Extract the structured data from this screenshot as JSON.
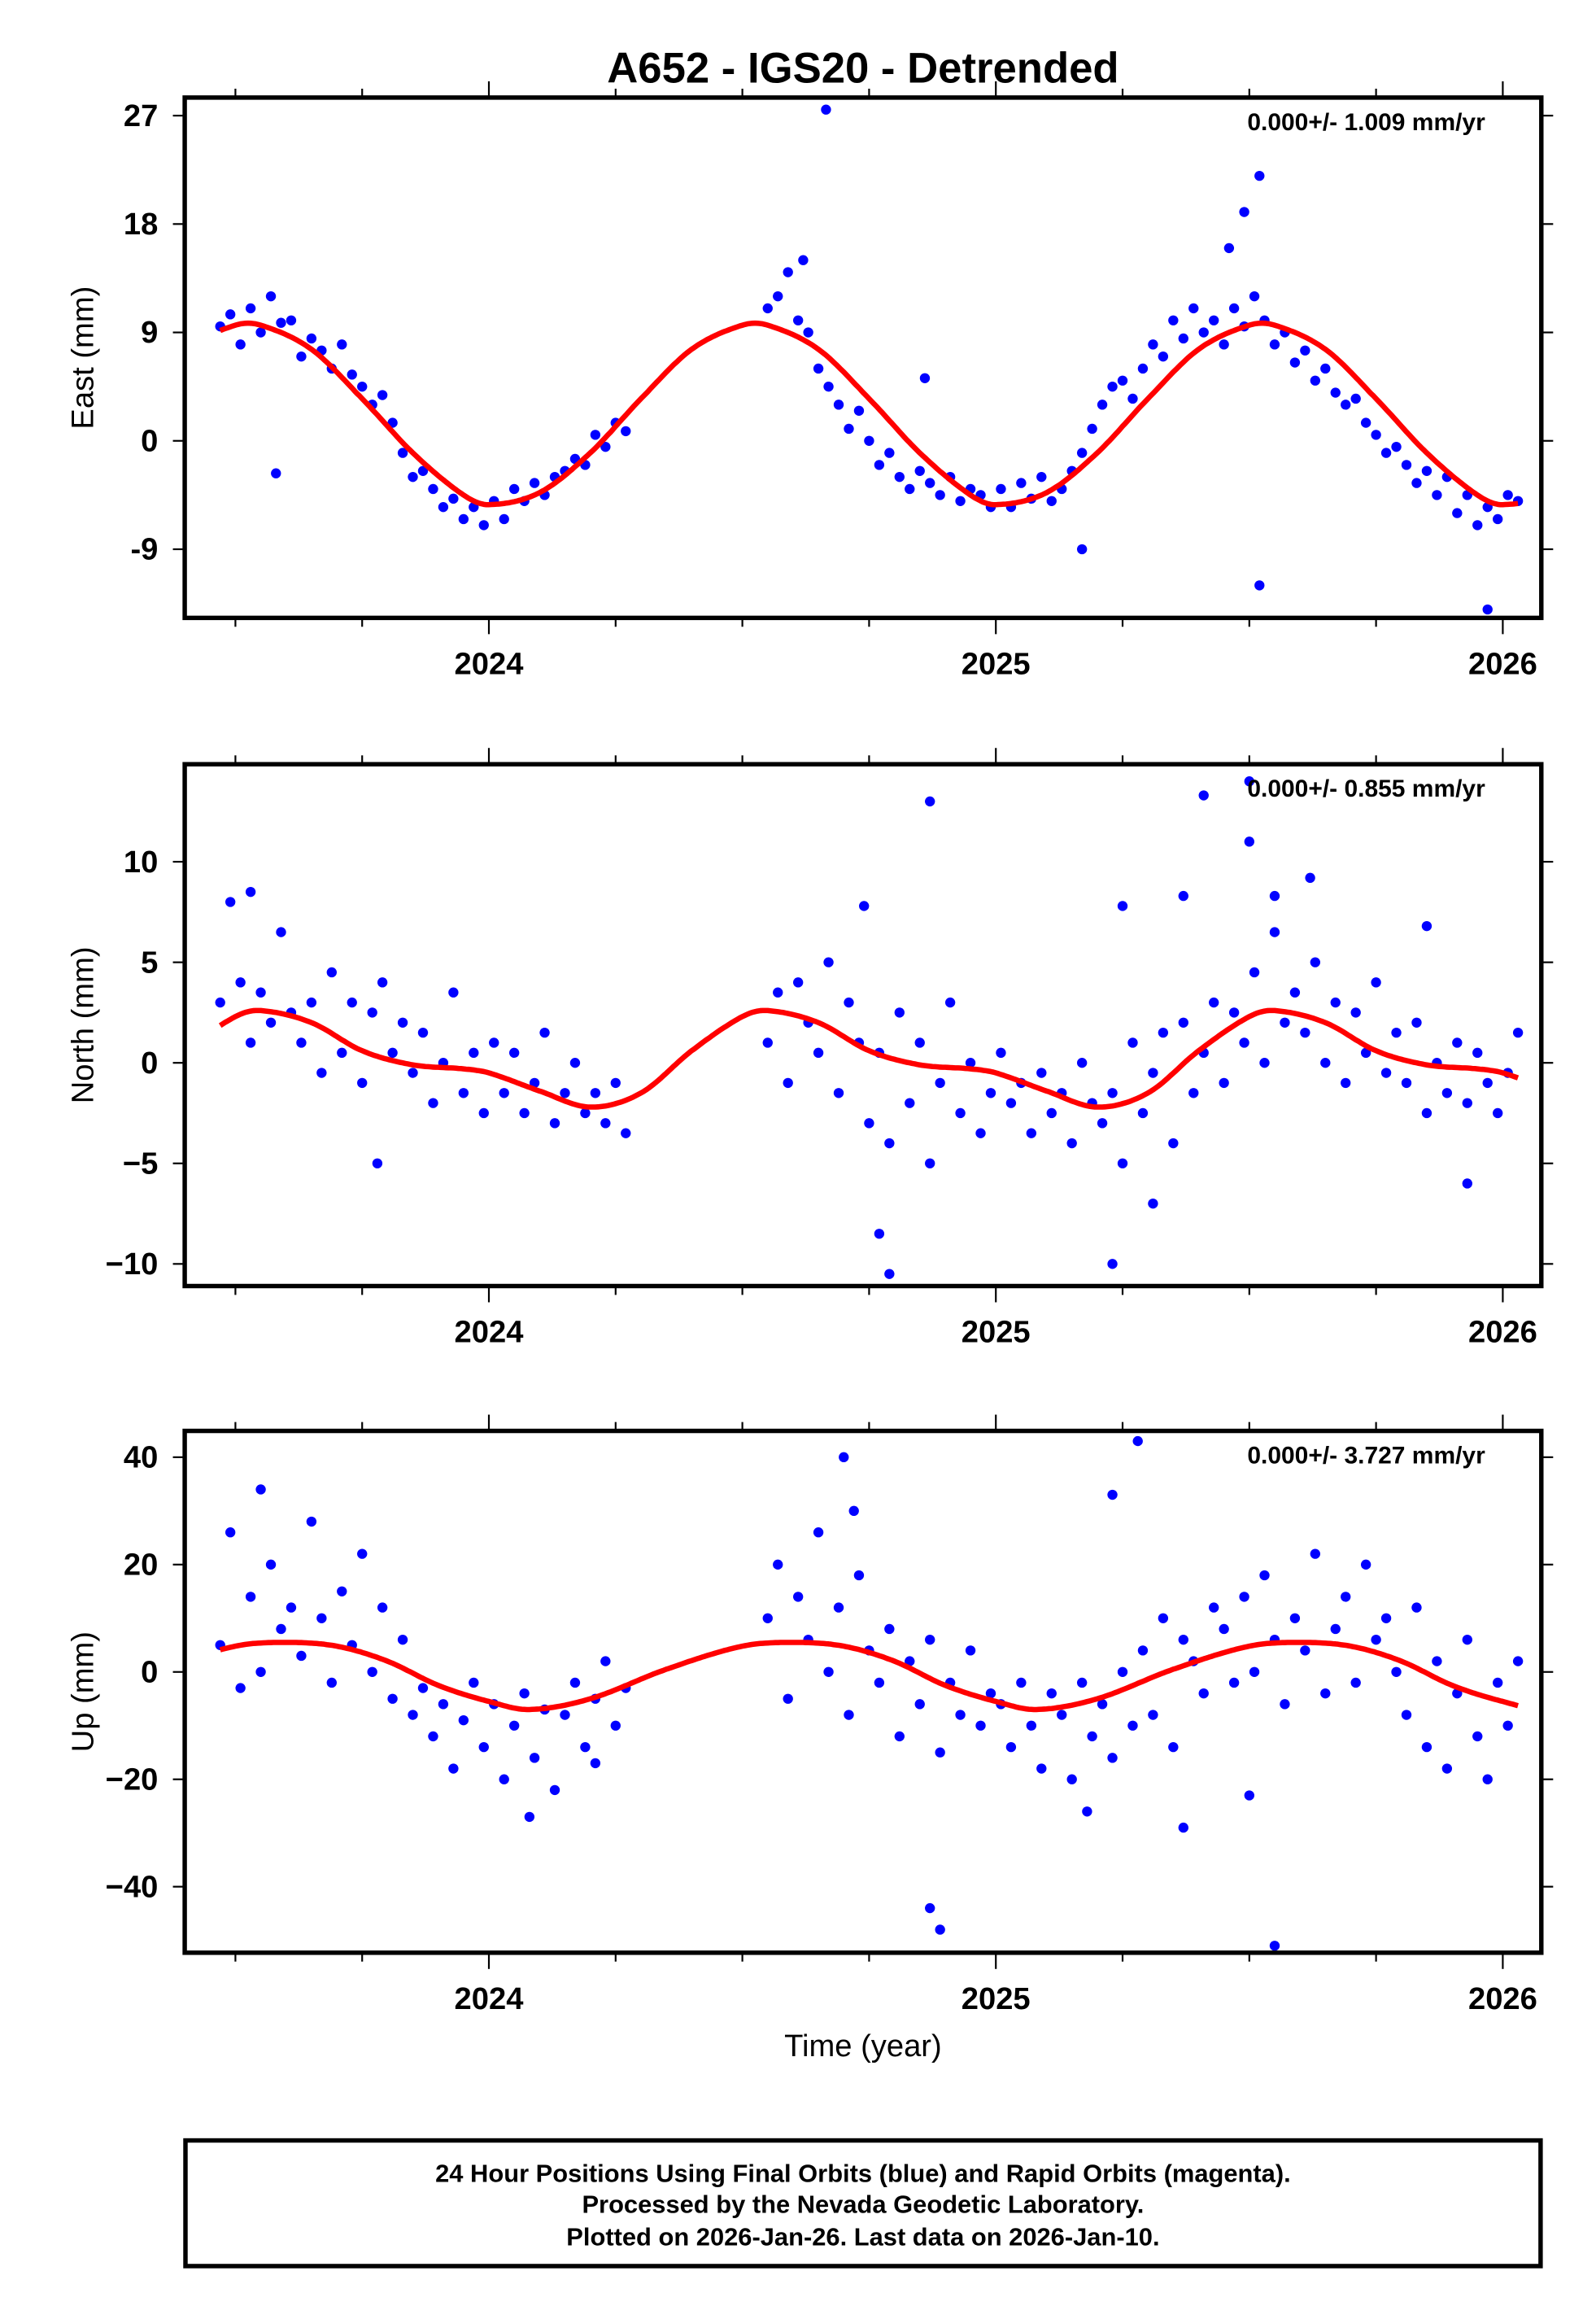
{
  "title": "A652 - IGS20 - Detrended",
  "xlabel": "Time (year)",
  "footer": {
    "line1": "24 Hour Positions Using Final Orbits (blue) and Rapid Orbits (magenta).",
    "line2": "Processed by the Nevada Geodetic Laboratory.",
    "line3": "Plotted on 2026-Jan-26. Last data on 2026-Jan-10."
  },
  "colors": {
    "final_orbits": "#0000ff",
    "rapid_orbits": "#ff00ff",
    "model": "#ff0000"
  },
  "chart_data": [
    {
      "type": "scatter",
      "title": "A652 - IGS20 - Detrended",
      "xlabel": "",
      "ylabel": "East (mm)",
      "rate_label": "0.000+/- 1.009 mm/yr",
      "xlim": [
        2023.4,
        2026.076
      ],
      "ylim": [
        -14.7,
        28.5
      ],
      "xticks": [
        2024,
        2025,
        2026
      ],
      "xtick_labels": [
        "2024",
        "2025",
        "2026"
      ],
      "yticks": [
        27,
        18,
        9,
        0,
        -9
      ],
      "ytick_labels": [
        "27",
        "18",
        "9",
        "0",
        "-9"
      ],
      "series_blocks": [
        {
          "t_start": 2023.47,
          "t_step": 0.02,
          "values": [
            9.5,
            10.5,
            8,
            11,
            9,
            12,
            9.8,
            10,
            7,
            8.5,
            7.5,
            6,
            8,
            5.5,
            4.5,
            3,
            3.8,
            1.5,
            -1,
            -3,
            -2.5,
            -4,
            -5.5,
            -4.8,
            -6.5,
            -5.5,
            -7,
            -5,
            -6.5,
            -4,
            -5,
            -3.5,
            -4.5,
            -3,
            -2.5,
            -1.5,
            -2,
            0.5,
            -0.5,
            1.5,
            0.8
          ]
        },
        {
          "t_start": 2024.55,
          "t_step": 0.02,
          "values": [
            11,
            12,
            14,
            10,
            9,
            6,
            4.5,
            3,
            1,
            2.5,
            0,
            -2,
            -1,
            -3,
            -4,
            -2.5,
            -3.5,
            -4.5,
            -3,
            -5,
            -4,
            -4.5,
            -5.5,
            -4,
            -5.5,
            -3.5,
            -4.8,
            -3,
            -5,
            -4,
            -2.5,
            -1,
            1,
            3,
            4.5,
            5,
            3.5,
            6,
            8,
            7,
            10,
            8.5,
            11,
            9,
            10,
            8,
            11,
            9.5,
            12,
            10,
            8,
            9,
            6.5,
            7.5,
            5,
            6,
            4,
            3,
            3.5,
            1.5,
            0.5,
            -1,
            -0.5,
            -2,
            -3.5,
            -2.5,
            -4.5,
            -3,
            -6,
            -4.5,
            -7,
            -5.5,
            -6.5,
            -4.5,
            -5
          ]
        }
      ],
      "outliers": [
        [
          2024.665,
          27.5
        ],
        [
          2025.52,
          22
        ],
        [
          2025.49,
          19
        ],
        [
          2025.46,
          16
        ],
        [
          2025.52,
          -12
        ],
        [
          2025.97,
          -14
        ],
        [
          2023.58,
          -2.7
        ],
        [
          2024.86,
          5.2
        ],
        [
          2025.17,
          -9
        ],
        [
          2024.62,
          15
        ]
      ],
      "model_cycle": {
        "phase": [
          0,
          0.1,
          0.2,
          0.3,
          0.4,
          0.5,
          0.55,
          0.65,
          0.75,
          0.85,
          0.95
        ],
        "value": [
          -5.3,
          -4.3,
          -1.0,
          3.5,
          7.6,
          9.6,
          9.6,
          7.6,
          3.5,
          -1.0,
          -4.5
        ]
      }
    },
    {
      "type": "scatter",
      "xlabel": "",
      "ylabel": "North (mm)",
      "rate_label": "0.000+/- 0.855 mm/yr",
      "xlim": [
        2023.4,
        2026.076
      ],
      "ylim": [
        -11.1,
        14.85
      ],
      "xticks": [
        2024,
        2025,
        2026
      ],
      "xtick_labels": [
        "2024",
        "2025",
        "2026"
      ],
      "yticks": [
        10,
        5,
        0,
        -5,
        -10
      ],
      "ytick_labels": [
        "10",
        "5",
        "0",
        "−5",
        "−10"
      ],
      "series_blocks": [
        {
          "t_start": 2023.47,
          "t_step": 0.02,
          "values": [
            3,
            8,
            4,
            1,
            3.5,
            2,
            6.5,
            2.5,
            1,
            3,
            -0.5,
            4.5,
            0.5,
            3,
            -1,
            2.5,
            4,
            0.5,
            2,
            -0.5,
            1.5,
            -2,
            0,
            3.5,
            -1.5,
            0.5,
            -2.5,
            1,
            -1.5,
            0.5,
            -2.5,
            -1,
            1.5,
            -3,
            -1.5,
            0,
            -2.5,
            -1.5,
            -3,
            -1,
            -3.5
          ]
        },
        {
          "t_start": 2024.55,
          "t_step": 0.02,
          "values": [
            1,
            3.5,
            -1,
            4,
            2,
            0.5,
            5,
            -1.5,
            3,
            1,
            -3,
            0.5,
            -4,
            2.5,
            -2,
            1,
            -5,
            -1,
            3,
            -2.5,
            0,
            -3.5,
            -1.5,
            0.5,
            -2,
            -1,
            -3.5,
            -0.5,
            -2.5,
            -1.5,
            -4,
            0,
            -2,
            -3,
            -1.5,
            -5,
            1,
            -2.5,
            -0.5,
            1.5,
            -4,
            2,
            -1.5,
            0.5,
            3,
            -1,
            2.5,
            1,
            4.5,
            0,
            6.5,
            2,
            3.5,
            1.5,
            5,
            0,
            3,
            -1,
            2.5,
            0.5,
            4,
            -0.5,
            1.5,
            -1,
            2,
            -2.5,
            0,
            -1.5,
            1,
            -2,
            0.5,
            -1,
            -2.5,
            -0.5,
            1.5
          ]
        }
      ],
      "outliers": [
        [
          2023.53,
          8.5
        ],
        [
          2023.78,
          -5
        ],
        [
          2024.87,
          13
        ],
        [
          2024.79,
          -10.5
        ],
        [
          2024.77,
          -8.5
        ],
        [
          2025.23,
          -10
        ],
        [
          2025.25,
          7.8
        ],
        [
          2025.37,
          8.3
        ],
        [
          2025.41,
          13.3
        ],
        [
          2025.5,
          14
        ],
        [
          2025.5,
          11
        ],
        [
          2025.55,
          8.3
        ],
        [
          2025.62,
          9.2
        ],
        [
          2025.85,
          6.8
        ],
        [
          2025.93,
          -6
        ],
        [
          2024.74,
          7.8
        ],
        [
          2025.31,
          -7
        ]
      ],
      "model_cycle": {
        "phase": [
          0,
          0.1,
          0.2,
          0.3,
          0.4,
          0.5,
          0.55,
          0.65,
          0.75,
          0.85,
          0.95
        ],
        "value": [
          -0.5,
          -1.4,
          -2.2,
          -1.5,
          0.6,
          2.3,
          2.6,
          2.0,
          0.6,
          -0.1,
          -0.3
        ]
      }
    },
    {
      "type": "scatter",
      "xlabel": "Time (year)",
      "ylabel": "Up (mm)",
      "rate_label": "0.000+/- 3.727 mm/yr",
      "xlim": [
        2023.4,
        2026.076
      ],
      "ylim": [
        -52.3,
        44.9
      ],
      "xticks": [
        2024,
        2025,
        2026
      ],
      "xtick_labels": [
        "2024",
        "2025",
        "2026"
      ],
      "yticks": [
        40,
        20,
        0,
        -20,
        -40
      ],
      "ytick_labels": [
        "40",
        "20",
        "0",
        "−20",
        "−40"
      ],
      "series_blocks": [
        {
          "t_start": 2023.47,
          "t_step": 0.02,
          "values": [
            5,
            26,
            -3,
            14,
            0,
            20,
            8,
            12,
            3,
            28,
            10,
            -2,
            15,
            5,
            22,
            0,
            12,
            -5,
            6,
            -8,
            -3,
            -12,
            -6,
            -18,
            -9,
            -2,
            -14,
            -6,
            -20,
            -10,
            -4,
            -16,
            -7,
            -22,
            -8,
            -2,
            -14,
            -5,
            2,
            -10,
            -3
          ]
        },
        {
          "t_start": 2024.55,
          "t_step": 0.02,
          "values": [
            10,
            20,
            -5,
            14,
            6,
            26,
            0,
            12,
            -8,
            18,
            4,
            -2,
            8,
            -12,
            2,
            -6,
            6,
            -15,
            -2,
            -8,
            4,
            -10,
            -4,
            -6,
            -14,
            -2,
            -10,
            -18,
            -4,
            -8,
            -20,
            -2,
            -12,
            -6,
            -16,
            0,
            -10,
            4,
            -8,
            10,
            -14,
            6,
            2,
            -4,
            12,
            8,
            -2,
            14,
            0,
            18,
            6,
            -6,
            10,
            4,
            22,
            -4,
            8,
            14,
            -2,
            20,
            6,
            10,
            0,
            -8,
            12,
            -14,
            2,
            -18,
            -4,
            6,
            -12,
            -20,
            -2,
            -10,
            2
          ]
        }
      ],
      "outliers": [
        [
          2023.55,
          34
        ],
        [
          2024.7,
          40
        ],
        [
          2024.72,
          30
        ],
        [
          2024.87,
          -44
        ],
        [
          2024.89,
          -48
        ],
        [
          2025.23,
          33
        ],
        [
          2025.28,
          43
        ],
        [
          2025.37,
          -29
        ],
        [
          2025.55,
          -51
        ],
        [
          2025.18,
          -26
        ],
        [
          2024.08,
          -27
        ],
        [
          2025.5,
          -23
        ],
        [
          2024.21,
          -17
        ]
      ],
      "model_cycle": {
        "phase": [
          0,
          0.08,
          0.2,
          0.35,
          0.5,
          0.6,
          0.7,
          0.8,
          0.9
        ],
        "value": [
          -5.5,
          -7,
          -5,
          0.5,
          4.8,
          5.5,
          4.8,
          2,
          -2.5
        ]
      }
    }
  ]
}
